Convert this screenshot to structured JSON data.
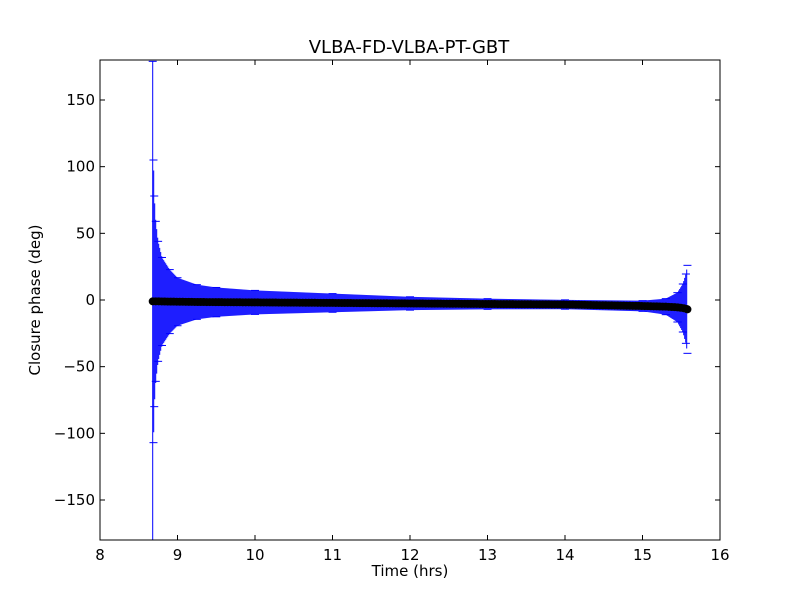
{
  "chart_data": {
    "type": "scatter",
    "title": "VLBA-FD-VLBA-PT-GBT",
    "xlabel": "Time (hrs)",
    "ylabel": "Closure phase (deg)",
    "xlim": [
      8,
      16
    ],
    "ylim": [
      -180,
      180
    ],
    "xticks": [
      8,
      9,
      10,
      11,
      12,
      13,
      14,
      15,
      16
    ],
    "xtick_labels": [
      "8",
      "9",
      "10",
      "11",
      "12",
      "13",
      "14",
      "15",
      "16"
    ],
    "yticks": [
      -150,
      -100,
      -50,
      0,
      50,
      100,
      150
    ],
    "ytick_labels": [
      "−150",
      "−100",
      "−50",
      "0",
      "50",
      "100",
      "150"
    ],
    "grid": false,
    "legend": "none",
    "series": [
      {
        "marker_color": "#000000",
        "errorbar_color": "#0000ff",
        "x_start": 8.68,
        "x_end": 15.58,
        "points": [
          {
            "x": 8.68,
            "y": -1.0,
            "err": 180
          },
          {
            "x": 8.69,
            "y": -1.0,
            "err": 106
          },
          {
            "x": 8.7,
            "y": -1.0,
            "err": 79
          },
          {
            "x": 8.72,
            "y": -1.0,
            "err": 60
          },
          {
            "x": 8.75,
            "y": -1.0,
            "err": 45
          },
          {
            "x": 8.8,
            "y": -1.1,
            "err": 33
          },
          {
            "x": 8.9,
            "y": -1.2,
            "err": 24
          },
          {
            "x": 9.0,
            "y": -1.3,
            "err": 18
          },
          {
            "x": 9.25,
            "y": -1.5,
            "err": 13
          },
          {
            "x": 9.5,
            "y": -1.6,
            "err": 11
          },
          {
            "x": 10.0,
            "y": -1.8,
            "err": 9
          },
          {
            "x": 11.0,
            "y": -2.2,
            "err": 7
          },
          {
            "x": 12.0,
            "y": -2.6,
            "err": 5
          },
          {
            "x": 13.0,
            "y": -3.0,
            "err": 4
          },
          {
            "x": 14.0,
            "y": -3.4,
            "err": 3.5
          },
          {
            "x": 15.0,
            "y": -4.5,
            "err": 4
          },
          {
            "x": 15.3,
            "y": -5.0,
            "err": 6
          },
          {
            "x": 15.45,
            "y": -5.5,
            "err": 11
          },
          {
            "x": 15.52,
            "y": -6.0,
            "err": 18
          },
          {
            "x": 15.56,
            "y": -6.5,
            "err": 26
          },
          {
            "x": 15.58,
            "y": -7.0,
            "err": 33
          }
        ]
      }
    ]
  }
}
